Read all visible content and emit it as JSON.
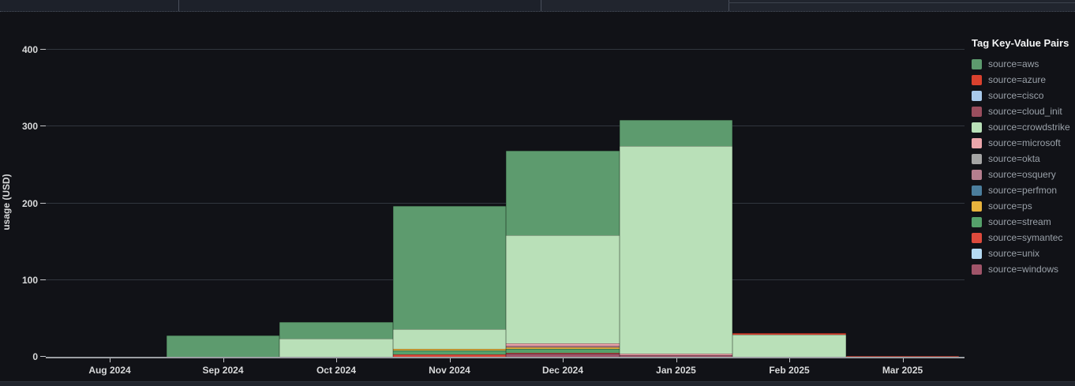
{
  "chart_data": {
    "type": "bar",
    "stacked": true,
    "title": "",
    "ylabel": "usage (USD)",
    "legend_title": "Tag Key-Value Pairs",
    "legend_position": "right",
    "grid": true,
    "ylim": [
      0,
      444
    ],
    "yticks": [
      0,
      100,
      200,
      300,
      400
    ],
    "categories": [
      "Aug 2024",
      "Sep 2024",
      "Oct 2024",
      "Nov 2024",
      "Dec 2024",
      "Jan 2025",
      "Feb 2025",
      "Mar 2025"
    ],
    "series": [
      {
        "name": "source=aws",
        "color": "#5d9b6e",
        "values": [
          0,
          28,
          21,
          160,
          110,
          33,
          0,
          0
        ]
      },
      {
        "name": "source=azure",
        "color": "#d9412e",
        "values": [
          0,
          0,
          0,
          0,
          0,
          0,
          2,
          0
        ]
      },
      {
        "name": "source=cisco",
        "color": "#a8c9ea",
        "values": [
          0,
          0,
          0,
          0,
          0,
          0,
          0,
          0
        ]
      },
      {
        "name": "source=cloud_init",
        "color": "#9a4e5e",
        "values": [
          0,
          0,
          0,
          0,
          0,
          0,
          0,
          0
        ]
      },
      {
        "name": "source=crowdstrike",
        "color": "#b9e0b8",
        "values": [
          0,
          0,
          24,
          26,
          141,
          271,
          29,
          0
        ]
      },
      {
        "name": "source=microsoft",
        "color": "#eba6ab",
        "values": [
          0,
          0,
          0,
          0,
          3,
          2,
          0,
          0
        ]
      },
      {
        "name": "source=okta",
        "color": "#a5a5a5",
        "values": [
          0,
          0,
          0,
          0,
          0,
          0,
          0,
          0
        ]
      },
      {
        "name": "source=osquery",
        "color": "#b57e8e",
        "values": [
          0,
          0,
          0,
          0,
          2,
          0,
          0,
          0
        ]
      },
      {
        "name": "source=perfmon",
        "color": "#4b7e9d",
        "values": [
          0,
          0,
          0,
          0,
          0,
          0,
          0,
          0
        ]
      },
      {
        "name": "source=ps",
        "color": "#e8b33d",
        "values": [
          0,
          0,
          0,
          2,
          2,
          0,
          0,
          0
        ]
      },
      {
        "name": "source=stream",
        "color": "#55a16b",
        "values": [
          0,
          0,
          0,
          5,
          5,
          0,
          0,
          0
        ]
      },
      {
        "name": "source=symantec",
        "color": "#dd4a3c",
        "values": [
          0,
          0,
          0,
          3,
          1,
          0,
          0,
          1
        ]
      },
      {
        "name": "source=unix",
        "color": "#b4daf2",
        "values": [
          0,
          0,
          0,
          0,
          0,
          0,
          0,
          0
        ]
      },
      {
        "name": "source=windows",
        "color": "#a05469",
        "values": [
          0,
          0,
          0,
          0,
          4,
          2,
          0,
          0
        ]
      }
    ]
  }
}
